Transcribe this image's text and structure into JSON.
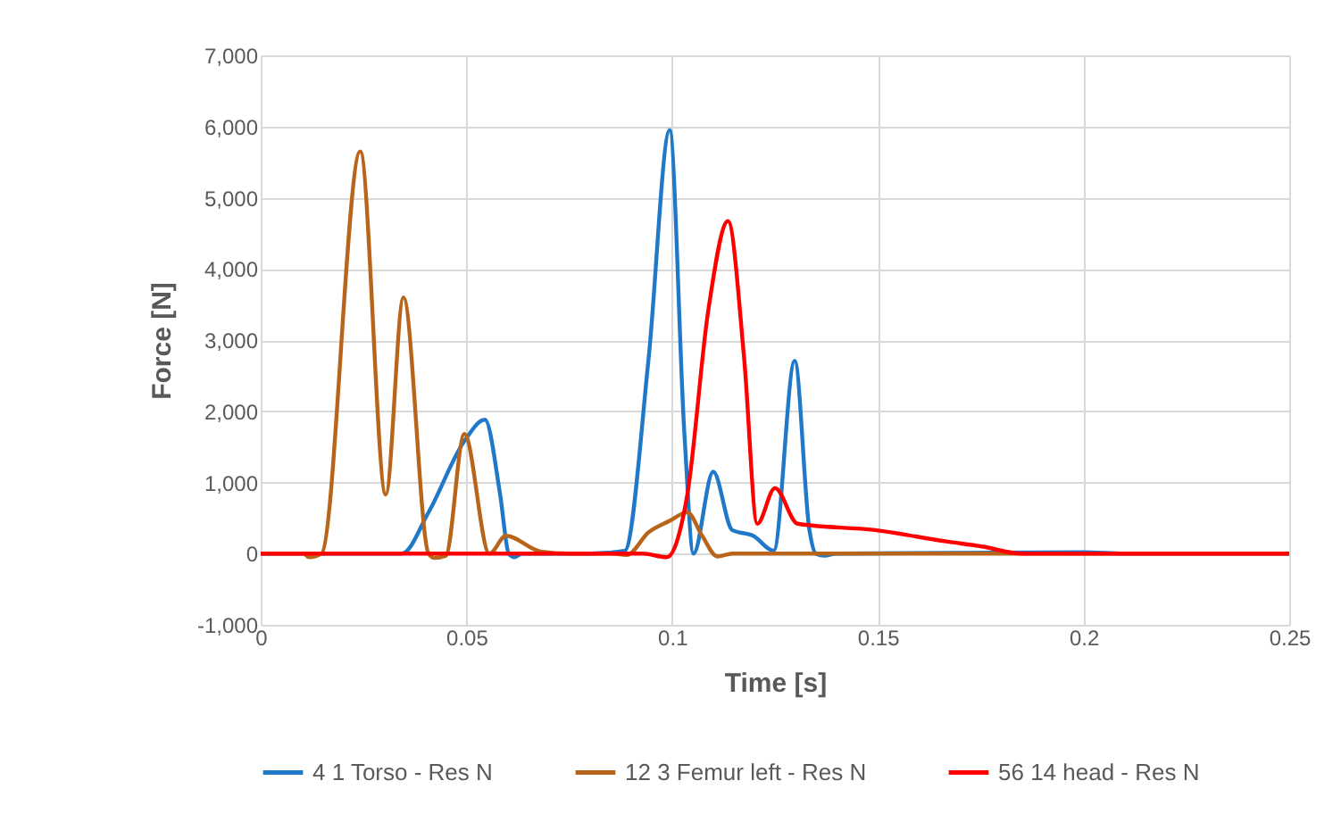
{
  "chart_data": {
    "type": "line",
    "xlabel": "Time [s]",
    "ylabel": "Force [N]",
    "xlim": [
      0,
      0.25
    ],
    "xticks": [
      0,
      0.05,
      0.1,
      0.15,
      0.2,
      0.25
    ],
    "ylim": [
      -1000,
      7000
    ],
    "yticks": [
      {
        "value": -1000,
        "label": "-1,000"
      },
      {
        "value": 0,
        "label": "0"
      },
      {
        "value": 1000,
        "label": "1,000"
      },
      {
        "value": 2000,
        "label": "2,000"
      },
      {
        "value": 3000,
        "label": "3,000"
      },
      {
        "value": 4000,
        "label": "4,000"
      },
      {
        "value": 5000,
        "label": "5,000"
      },
      {
        "value": 6000,
        "label": "6,000"
      },
      {
        "value": 7000,
        "label": "7,000"
      }
    ],
    "grid": true,
    "legend": "bottom",
    "marker": "none",
    "line_style": "solid",
    "series": [
      {
        "name": "4 1 Torso - Res N",
        "color": "#1f78c8",
        "x": [
          0,
          0.0343,
          0.0408,
          0.0495,
          0.0545,
          0.0582,
          0.0603,
          0.0617,
          0.0635,
          0.08,
          0.0885,
          0.0943,
          0.0994,
          0.103,
          0.1052,
          0.11,
          0.1146,
          0.1197,
          0.1247,
          0.1298,
          0.1334,
          0.1349,
          0.137,
          0.14,
          0.2,
          0.21,
          0.25
        ],
        "values": [
          0,
          0,
          580,
          1580,
          1880,
          830,
          0,
          -50,
          0,
          0,
          40,
          2750,
          5950,
          1670,
          0,
          1150,
          330,
          250,
          40,
          2710,
          320,
          0,
          -30,
          0,
          20,
          0,
          0
        ]
      },
      {
        "name": "12 3 Femur left - Res N",
        "color": "#b8651b",
        "x": [
          0,
          0.0104,
          0.0117,
          0.0148,
          0.0242,
          0.0304,
          0.0347,
          0.0408,
          0.0422,
          0.045,
          0.0495,
          0.0556,
          0.0596,
          0.068,
          0.075,
          0.0855,
          0.089,
          0.0943,
          0.0994,
          0.1037,
          0.1073,
          0.111,
          0.1146,
          0.25
        ],
        "values": [
          0,
          0,
          -50,
          0,
          5650,
          830,
          3600,
          0,
          -60,
          -30,
          1680,
          0,
          250,
          30,
          0,
          0,
          -20,
          300,
          460,
          580,
          250,
          -40,
          0,
          0
        ]
      },
      {
        "name": "56 14 head - Res N",
        "color": "#ff0000",
        "x": [
          0,
          0.0929,
          0.0987,
          0.1037,
          0.1088,
          0.1136,
          0.1175,
          0.1207,
          0.125,
          0.1305,
          0.1493,
          0.1667,
          0.1753,
          0.185,
          0.25
        ],
        "values": [
          0,
          0,
          -50,
          830,
          3420,
          4670,
          2750,
          420,
          920,
          420,
          330,
          170,
          100,
          0,
          0
        ]
      }
    ]
  }
}
